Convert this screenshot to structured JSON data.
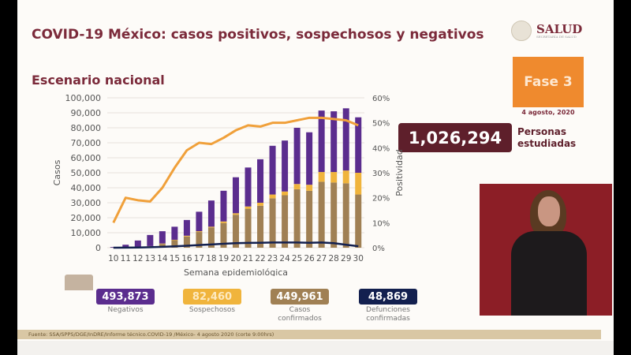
{
  "header": {
    "title": "COVID-19 México: casos positivos, sospechosos y negativos",
    "subtitle": "Escenario nacional",
    "logo_text": "SALUD",
    "logo_subtext": "SECRETARÍA DE SALUD"
  },
  "phase": {
    "label": "Fase 3",
    "date": "4 agosto, 2020",
    "color": "#ef8a2e"
  },
  "studied": {
    "value": "1,026,294",
    "label_line1": "Personas",
    "label_line2": "estudiadas"
  },
  "totals": [
    {
      "value": "493,873",
      "label": "Negativos",
      "color": "#5b2d8e"
    },
    {
      "value": "82,460",
      "label": "Sospechosos",
      "color": "#f0b43c"
    },
    {
      "value": "449,961",
      "label": "Casos confirmados",
      "color": "#a08054"
    },
    {
      "value": "48,869",
      "label": "Defunciones confirmadas",
      "color": "#13204f"
    }
  ],
  "source": "Fuente: SSA/SPPS/DGE/InDRE/Informe técnico.COVID-19 /México- 4 agosto 2020 (corte 9:00hrs)",
  "chart_data": {
    "type": "bar",
    "stacked": true,
    "xlabel": "Semana epidemiológica",
    "ylabel": "Casos",
    "y2label": "Positividad",
    "ylim": [
      0,
      100000
    ],
    "y2lim": [
      0,
      60
    ],
    "yticks": [
      "0",
      "10,000",
      "20,000",
      "30,000",
      "40,000",
      "50,000",
      "60,000",
      "70,000",
      "80,000",
      "90,000",
      "100,000"
    ],
    "y2ticks": [
      "0%",
      "10%",
      "20%",
      "30%",
      "40%",
      "50%",
      "60%"
    ],
    "grid": true,
    "categories": [
      "10",
      "11",
      "12",
      "13",
      "14",
      "15",
      "16",
      "17",
      "18",
      "19",
      "20",
      "21",
      "22",
      "23",
      "24",
      "25",
      "26",
      "27",
      "28",
      "29",
      "30"
    ],
    "series": [
      {
        "name": "Casos confirmados",
        "color": "#a08054",
        "values": [
          100,
          300,
          500,
          900,
          2500,
          5000,
          7500,
          10500,
          13500,
          16500,
          22000,
          26000,
          28000,
          33000,
          35000,
          39000,
          38000,
          44000,
          43500,
          43000,
          35500
        ]
      },
      {
        "name": "Sospechosos",
        "color": "#f0b43c",
        "values": [
          0,
          0,
          100,
          200,
          300,
          300,
          500,
          500,
          500,
          1000,
          1000,
          1500,
          2000,
          2500,
          2500,
          3500,
          4000,
          6500,
          7000,
          8500,
          14500
        ]
      },
      {
        "name": "Negativos",
        "color": "#5b2d8e",
        "values": [
          400,
          1700,
          4200,
          7400,
          8200,
          8700,
          10500,
          13000,
          17500,
          20500,
          24000,
          26000,
          29000,
          32500,
          34000,
          37500,
          35000,
          41000,
          40500,
          41500,
          37000
        ]
      },
      {
        "name": "Defunciones confirmadas",
        "type": "line",
        "color": "#13204f",
        "values": [
          0,
          50,
          150,
          300,
          600,
          900,
          1300,
          1800,
          2200,
          2600,
          3000,
          3200,
          3300,
          3500,
          3500,
          3500,
          3300,
          3500,
          3000,
          2000,
          1000
        ]
      },
      {
        "name": "Positividad",
        "type": "line",
        "axis": "right",
        "color": "#f0a03a",
        "values": [
          10,
          20,
          19,
          18.5,
          24,
          32,
          39,
          42,
          41.5,
          44,
          47,
          49,
          48.5,
          50,
          50,
          51,
          52,
          52,
          51.5,
          51,
          49
        ]
      }
    ]
  }
}
